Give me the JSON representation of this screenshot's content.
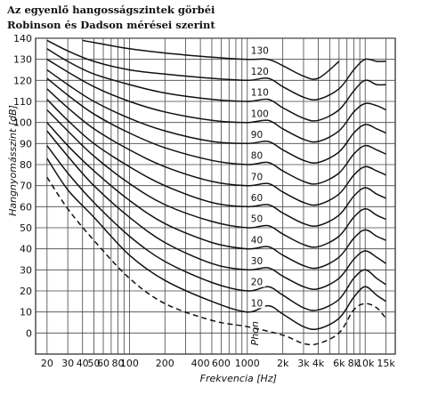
{
  "title_lines": [
    "Az egyenlő hangosságszintek görbéi",
    "Robinson és Dadson mérései szerint"
  ],
  "chart_data": {
    "type": "line",
    "title": "Az egyenlő hangosságszintek görbéi Robinson és Dadson mérései szerint",
    "xlabel": "Frekvencia [Hz]",
    "ylabel": "Hangnyomásszint [dB]",
    "xscale": "log",
    "xlim": [
      16,
      18000
    ],
    "ylim": [
      -10,
      140
    ],
    "x_ticks": [
      20,
      30,
      40,
      50,
      60,
      80,
      100,
      200,
      400,
      600,
      1000,
      2000,
      3000,
      4000,
      6000,
      8000,
      10000,
      15000
    ],
    "x_tick_labels": [
      "20",
      "30",
      "40",
      "50",
      "60",
      "80",
      "100",
      "200",
      "400",
      "600",
      "1000",
      "2k",
      "3k",
      "4k",
      "6k",
      "8k",
      "10k",
      "15k"
    ],
    "y_ticks": [
      0,
      10,
      20,
      30,
      40,
      50,
      60,
      70,
      80,
      90,
      100,
      110,
      120,
      130,
      140
    ],
    "grid": true,
    "curve_labels_note": "Phon",
    "series": [
      {
        "label": "",
        "dashed": true,
        "points": [
          [
            20,
            74
          ],
          [
            30,
            59
          ],
          [
            50,
            44
          ],
          [
            100,
            26
          ],
          [
            200,
            14
          ],
          [
            500,
            6
          ],
          [
            1000,
            3
          ],
          [
            2000,
            -1
          ],
          [
            3000,
            -5
          ],
          [
            4000,
            -5
          ],
          [
            6000,
            0
          ],
          [
            8000,
            11
          ],
          [
            10000,
            14
          ],
          [
            12500,
            12
          ],
          [
            15000,
            7
          ]
        ]
      },
      {
        "label": "10",
        "dashed": false,
        "points": [
          [
            20,
            83
          ],
          [
            30,
            68
          ],
          [
            50,
            55
          ],
          [
            100,
            37
          ],
          [
            200,
            25
          ],
          [
            500,
            15
          ],
          [
            1000,
            10
          ],
          [
            1500,
            13
          ],
          [
            2000,
            9
          ],
          [
            3000,
            3
          ],
          [
            4000,
            2
          ],
          [
            6000,
            7
          ],
          [
            8000,
            17
          ],
          [
            10000,
            22
          ],
          [
            12500,
            18
          ],
          [
            15000,
            15
          ]
        ]
      },
      {
        "label": "20",
        "dashed": false,
        "points": [
          [
            20,
            89
          ],
          [
            30,
            76
          ],
          [
            50,
            62
          ],
          [
            100,
            46
          ],
          [
            200,
            34
          ],
          [
            500,
            24
          ],
          [
            1000,
            20
          ],
          [
            1500,
            22
          ],
          [
            2000,
            18
          ],
          [
            3000,
            12
          ],
          [
            4000,
            11
          ],
          [
            6000,
            16
          ],
          [
            8000,
            26
          ],
          [
            10000,
            30
          ],
          [
            12500,
            26
          ],
          [
            15000,
            23
          ]
        ]
      },
      {
        "label": "30",
        "dashed": false,
        "points": [
          [
            20,
            96
          ],
          [
            30,
            84
          ],
          [
            50,
            70
          ],
          [
            100,
            55
          ],
          [
            200,
            43
          ],
          [
            500,
            33
          ],
          [
            1000,
            30
          ],
          [
            1500,
            31
          ],
          [
            2000,
            27
          ],
          [
            3000,
            22
          ],
          [
            4000,
            21
          ],
          [
            6000,
            26
          ],
          [
            8000,
            35
          ],
          [
            10000,
            39
          ],
          [
            12500,
            36
          ],
          [
            15000,
            33
          ]
        ]
      },
      {
        "label": "40",
        "dashed": false,
        "points": [
          [
            20,
            100
          ],
          [
            30,
            89
          ],
          [
            50,
            77
          ],
          [
            100,
            63
          ],
          [
            200,
            52
          ],
          [
            500,
            43
          ],
          [
            1000,
            40
          ],
          [
            1500,
            41
          ],
          [
            2000,
            37
          ],
          [
            3000,
            32
          ],
          [
            4000,
            31
          ],
          [
            6000,
            36
          ],
          [
            8000,
            45
          ],
          [
            10000,
            49
          ],
          [
            12500,
            46
          ],
          [
            15000,
            44
          ]
        ]
      },
      {
        "label": "50",
        "dashed": false,
        "points": [
          [
            20,
            106
          ],
          [
            30,
            96
          ],
          [
            50,
            84
          ],
          [
            100,
            71
          ],
          [
            200,
            61
          ],
          [
            500,
            53
          ],
          [
            1000,
            50
          ],
          [
            1500,
            51
          ],
          [
            2000,
            47
          ],
          [
            3000,
            42
          ],
          [
            4000,
            41
          ],
          [
            6000,
            46
          ],
          [
            8000,
            55
          ],
          [
            10000,
            59
          ],
          [
            12500,
            56
          ],
          [
            15000,
            54
          ]
        ]
      },
      {
        "label": "60",
        "dashed": false,
        "points": [
          [
            20,
            111
          ],
          [
            30,
            101
          ],
          [
            50,
            90
          ],
          [
            100,
            79
          ],
          [
            200,
            70
          ],
          [
            500,
            62
          ],
          [
            1000,
            60
          ],
          [
            1500,
            61
          ],
          [
            2000,
            57
          ],
          [
            3000,
            52
          ],
          [
            4000,
            51
          ],
          [
            6000,
            56
          ],
          [
            8000,
            65
          ],
          [
            10000,
            69
          ],
          [
            12500,
            66
          ],
          [
            15000,
            64
          ]
        ]
      },
      {
        "label": "70",
        "dashed": false,
        "points": [
          [
            20,
            116
          ],
          [
            30,
            107
          ],
          [
            50,
            97
          ],
          [
            100,
            87
          ],
          [
            200,
            79
          ],
          [
            500,
            72
          ],
          [
            1000,
            70
          ],
          [
            1500,
            71
          ],
          [
            2000,
            67
          ],
          [
            3000,
            62
          ],
          [
            4000,
            61
          ],
          [
            6000,
            66
          ],
          [
            8000,
            75
          ],
          [
            10000,
            79
          ],
          [
            12500,
            77
          ],
          [
            15000,
            75
          ]
        ]
      },
      {
        "label": "80",
        "dashed": false,
        "points": [
          [
            20,
            121
          ],
          [
            30,
            113
          ],
          [
            50,
            104
          ],
          [
            100,
            95
          ],
          [
            200,
            88
          ],
          [
            500,
            82
          ],
          [
            1000,
            80
          ],
          [
            1500,
            81
          ],
          [
            2000,
            77
          ],
          [
            3000,
            72
          ],
          [
            4000,
            71
          ],
          [
            6000,
            76
          ],
          [
            8000,
            85
          ],
          [
            10000,
            89
          ],
          [
            12500,
            87
          ],
          [
            15000,
            85
          ]
        ]
      },
      {
        "label": "90",
        "dashed": false,
        "points": [
          [
            20,
            125
          ],
          [
            30,
            118
          ],
          [
            50,
            110
          ],
          [
            100,
            102
          ],
          [
            200,
            96
          ],
          [
            500,
            91
          ],
          [
            1000,
            90
          ],
          [
            1500,
            91
          ],
          [
            2000,
            87
          ],
          [
            3000,
            82
          ],
          [
            4000,
            81
          ],
          [
            6000,
            86
          ],
          [
            8000,
            95
          ],
          [
            10000,
            99
          ],
          [
            12500,
            97
          ],
          [
            15000,
            95
          ]
        ]
      },
      {
        "label": "100",
        "dashed": false,
        "points": [
          [
            20,
            130
          ],
          [
            30,
            124
          ],
          [
            50,
            117
          ],
          [
            100,
            110
          ],
          [
            200,
            105
          ],
          [
            500,
            101
          ],
          [
            1000,
            100
          ],
          [
            1500,
            101
          ],
          [
            2000,
            97
          ],
          [
            3000,
            92
          ],
          [
            4000,
            91
          ],
          [
            6000,
            96
          ],
          [
            8000,
            105
          ],
          [
            10000,
            109
          ],
          [
            12500,
            108
          ],
          [
            15000,
            106
          ]
        ]
      },
      {
        "label": "110",
        "dashed": false,
        "points": [
          [
            20,
            135
          ],
          [
            30,
            129
          ],
          [
            50,
            123
          ],
          [
            100,
            118
          ],
          [
            200,
            114
          ],
          [
            500,
            111
          ],
          [
            1000,
            110
          ],
          [
            1500,
            111
          ],
          [
            2000,
            107
          ],
          [
            3000,
            102
          ],
          [
            4000,
            101
          ],
          [
            6000,
            106
          ],
          [
            8000,
            115
          ],
          [
            10000,
            120
          ],
          [
            12500,
            118
          ],
          [
            15000,
            118
          ]
        ]
      },
      {
        "label": "120",
        "dashed": false,
        "points": [
          [
            20,
            139
          ],
          [
            30,
            134
          ],
          [
            50,
            129
          ],
          [
            100,
            125
          ],
          [
            200,
            123
          ],
          [
            500,
            121
          ],
          [
            1000,
            120
          ],
          [
            1500,
            121
          ],
          [
            2000,
            117
          ],
          [
            3000,
            112
          ],
          [
            4000,
            111
          ],
          [
            6000,
            116
          ],
          [
            8000,
            125
          ],
          [
            10000,
            130
          ],
          [
            12500,
            129
          ],
          [
            15000,
            129
          ]
        ]
      },
      {
        "label": "130",
        "dashed": false,
        "points": [
          [
            40,
            139
          ],
          [
            50,
            138
          ],
          [
            100,
            135
          ],
          [
            200,
            133
          ],
          [
            500,
            131
          ],
          [
            1000,
            130
          ],
          [
            1500,
            130
          ],
          [
            2000,
            127
          ],
          [
            3000,
            122
          ],
          [
            4000,
            121
          ],
          [
            6000,
            129
          ]
        ]
      }
    ]
  }
}
